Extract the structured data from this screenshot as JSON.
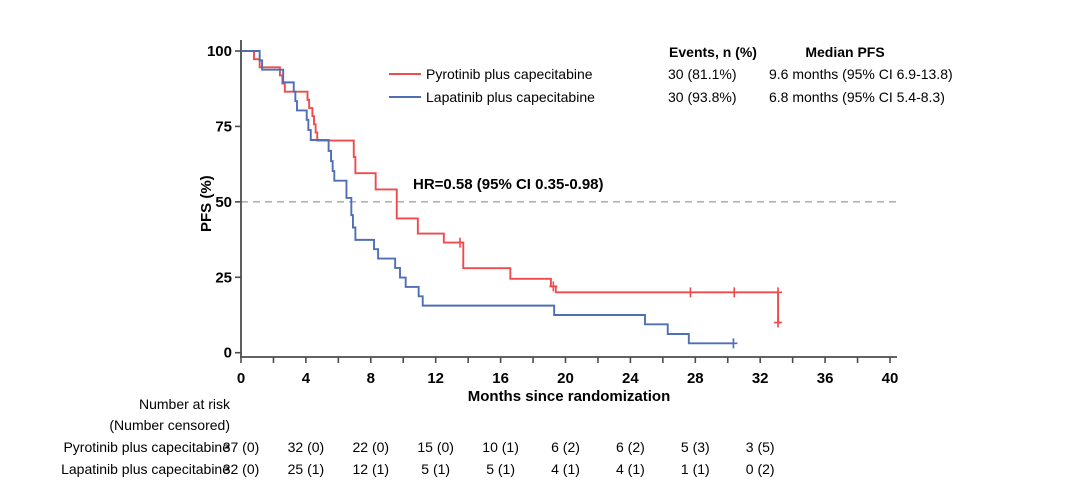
{
  "figure": {
    "hr_annotation": "HR=0.58 (95% CI 0.35-0.98)",
    "y_axis_label": "PFS (%)",
    "x_axis_label": "Months since randomization",
    "colors": {
      "pyrotinib_red": "#ee4b4e",
      "lapatinib_blue": "#4e6fb5",
      "axis": "#4d4d4d",
      "reference_dash": "#b3b3b3",
      "text": "#000000",
      "background": "#ffffff"
    }
  },
  "legend": {
    "header_events": "Events, n (%)",
    "header_median": "Median PFS"
  },
  "risk_table": {
    "header_line1": "Number at risk",
    "header_line2": "(Number censored)",
    "months": [
      0,
      4,
      8,
      12,
      16,
      20,
      24,
      28,
      32
    ],
    "rows": [
      {
        "label": "Pyrotinib plus capecitabine",
        "values": [
          "37 (0)",
          "32 (0)",
          "22 (0)",
          "15 (0)",
          "10 (1)",
          "6 (2)",
          "6 (2)",
          "5 (3)",
          "3 (5)"
        ]
      },
      {
        "label": "Lapatinib plus capecitabine",
        "values": [
          "32 (0)",
          "25 (1)",
          "12 (1)",
          "5 (1)",
          "5 (1)",
          "4 (1)",
          "4 (1)",
          "1 (1)",
          "0 (2)"
        ]
      }
    ]
  },
  "chart_data": {
    "type": "line",
    "subtype": "kaplan-meier-step",
    "title": "",
    "xlabel": "Months since randomization",
    "ylabel": "PFS (%)",
    "xlim": [
      0,
      40
    ],
    "ylim": [
      0,
      100
    ],
    "x_major_ticks": [
      0,
      4,
      8,
      12,
      16,
      20,
      24,
      28,
      32,
      36,
      40
    ],
    "x_minor_tick_step": 2,
    "y_ticks": [
      0,
      25,
      50,
      75,
      100
    ],
    "grid": false,
    "legend_position": "top-right",
    "reference_line": {
      "y": 50,
      "style": "dashed",
      "label": "HR=0.58 (95% CI 0.35-0.98)"
    },
    "series": [
      {
        "label": "Pyrotinib plus capecitabine",
        "color": "#ee4b4e",
        "events_n_pct": "30 (81.1%)",
        "median_pfs": "9.6 months (95% CI 6.9-13.8)",
        "steps": [
          [
            0,
            100
          ],
          [
            0.8,
            97.3
          ],
          [
            1.15,
            94.6
          ],
          [
            2.4,
            91.9
          ],
          [
            2.55,
            89.2
          ],
          [
            2.7,
            86.5
          ],
          [
            4.1,
            83.8
          ],
          [
            4.2,
            81.1
          ],
          [
            4.4,
            78.4
          ],
          [
            4.5,
            75.7
          ],
          [
            4.6,
            73.0
          ],
          [
            4.7,
            70.3
          ],
          [
            6.95,
            64.9
          ],
          [
            7.05,
            59.5
          ],
          [
            8.3,
            54.1
          ],
          [
            9.6,
            44.5
          ],
          [
            10.9,
            39.5
          ],
          [
            12.5,
            36.5
          ],
          [
            13.7,
            28.0
          ],
          [
            16.6,
            24.5
          ],
          [
            19.1,
            22.0
          ],
          [
            19.4,
            20.0
          ],
          [
            33.1,
            10.0
          ]
        ],
        "censor_marks": [
          [
            13.5,
            36.5
          ],
          [
            19.25,
            22.0
          ],
          [
            27.7,
            20.0
          ],
          [
            30.4,
            20.0
          ],
          [
            33.1,
            20.0
          ],
          [
            33.1,
            10.0
          ]
        ],
        "end_month": 33.25
      },
      {
        "label": "Lapatinib plus capecitabine",
        "color": "#4e6fb5",
        "events_n_pct": "30 (93.8%)",
        "median_pfs": "6.8 months (95% CI 5.4-8.3)",
        "steps": [
          [
            0,
            100
          ],
          [
            1.15,
            96.9
          ],
          [
            1.3,
            93.8
          ],
          [
            2.6,
            89.6
          ],
          [
            3.25,
            86.5
          ],
          [
            3.35,
            83.4
          ],
          [
            3.45,
            80.3
          ],
          [
            4.05,
            77.2
          ],
          [
            4.15,
            73.8
          ],
          [
            4.3,
            70.5
          ],
          [
            5.4,
            66.9
          ],
          [
            5.55,
            63.5
          ],
          [
            5.65,
            60.2
          ],
          [
            5.75,
            57.0
          ],
          [
            6.5,
            51.3
          ],
          [
            6.8,
            45.6
          ],
          [
            6.9,
            41.5
          ],
          [
            7.05,
            37.4
          ],
          [
            8.2,
            34.3
          ],
          [
            8.45,
            31.2
          ],
          [
            9.5,
            28.1
          ],
          [
            9.8,
            24.9
          ],
          [
            10.15,
            21.8
          ],
          [
            10.95,
            18.7
          ],
          [
            11.2,
            15.6
          ],
          [
            19.3,
            12.5
          ],
          [
            24.9,
            9.4
          ],
          [
            26.3,
            6.2
          ],
          [
            27.6,
            3.1
          ]
        ],
        "censor_marks": [
          [
            30.35,
            3.1
          ]
        ],
        "end_month": 30.4
      }
    ]
  }
}
